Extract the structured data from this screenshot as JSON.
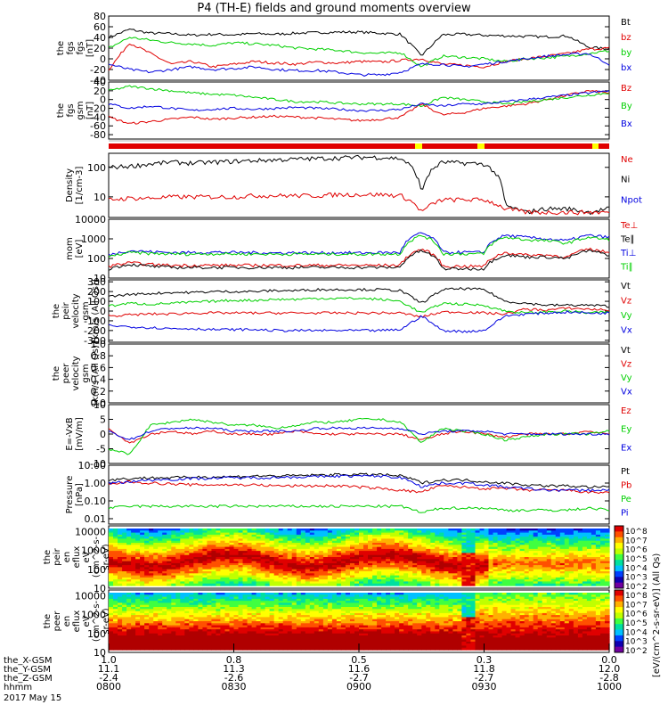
{
  "title": "P4 (TH-E) fields and ground moments overview",
  "date_label": "2017 May 15",
  "colors": {
    "black": "#000000",
    "red": "#e00000",
    "green": "#00d000",
    "blue": "#0000e0"
  },
  "chart_data": [
    {
      "type": "line",
      "ylabel": [
        "the",
        "fgs",
        "fgs",
        "[nT]"
      ],
      "ticks": [
        "80",
        "60",
        "40",
        "20",
        "0",
        "-20",
        "-40"
      ],
      "ylim": [
        -40,
        80
      ],
      "legend": [
        "Bt",
        "bz",
        "by",
        "bx"
      ],
      "series": [
        {
          "name": "Bt",
          "color": "black",
          "values": [
            40,
            55,
            48,
            47,
            44,
            46,
            45,
            47,
            46,
            48,
            49,
            50,
            50,
            48,
            46,
            6,
            45,
            46,
            44,
            43,
            42,
            41,
            43,
            22,
            18
          ]
        },
        {
          "name": "bz",
          "color": "red",
          "values": [
            -20,
            30,
            10,
            -10,
            -5,
            -15,
            -10,
            -5,
            -8,
            -10,
            -6,
            -8,
            -5,
            -6,
            -3,
            0,
            -10,
            -12,
            -15,
            -5,
            0,
            5,
            10,
            18,
            20
          ]
        },
        {
          "name": "by",
          "color": "green",
          "values": [
            20,
            40,
            35,
            30,
            28,
            25,
            30,
            28,
            25,
            20,
            18,
            16,
            12,
            10,
            12,
            -15,
            5,
            3,
            0,
            -5,
            0,
            2,
            5,
            10,
            15
          ]
        },
        {
          "name": "bx",
          "color": "blue",
          "values": [
            -10,
            -20,
            -25,
            -20,
            -15,
            -20,
            -18,
            -15,
            -20,
            -22,
            -22,
            -25,
            -30,
            -30,
            -25,
            -10,
            -10,
            -15,
            -10,
            -5,
            0,
            5,
            8,
            10,
            -10
          ]
        }
      ]
    },
    {
      "type": "line",
      "ylabel": [
        "the",
        "fgs",
        "gsm",
        "[nT]"
      ],
      "ticks": [
        "40",
        "20",
        "0",
        "-20",
        "-40",
        "-60",
        "-80"
      ],
      "ylim": [
        -90,
        40
      ],
      "legend": [
        "Bz",
        "By",
        "Bx"
      ],
      "series": [
        {
          "name": "Bz",
          "color": "red",
          "values": [
            -40,
            -55,
            -50,
            -45,
            -40,
            -45,
            -42,
            -40,
            -38,
            -40,
            -42,
            -45,
            -48,
            -45,
            -40,
            -10,
            -35,
            -30,
            -20,
            -15,
            -10,
            0,
            10,
            20,
            15
          ]
        },
        {
          "name": "By",
          "color": "green",
          "values": [
            20,
            30,
            25,
            20,
            15,
            12,
            10,
            5,
            0,
            -5,
            -5,
            -8,
            -10,
            -10,
            -10,
            -15,
            5,
            0,
            -5,
            -10,
            -5,
            0,
            5,
            10,
            15
          ]
        },
        {
          "name": "Bx",
          "color": "blue",
          "values": [
            -10,
            -20,
            -15,
            -20,
            -25,
            -22,
            -20,
            -22,
            -20,
            -18,
            -20,
            -22,
            -25,
            -25,
            -22,
            -10,
            -15,
            -10,
            -10,
            -5,
            0,
            5,
            10,
            15,
            20
          ]
        }
      ]
    },
    {
      "type": "line",
      "ylabel": [
        "Density",
        "[1/cm-3]"
      ],
      "ticks": [
        "100",
        "10"
      ],
      "ylim": [
        2,
        300
      ],
      "scale": "log",
      "legend": [
        "Ne",
        "Ni",
        "Npot"
      ],
      "series": [
        {
          "name": "Ni",
          "color": "black",
          "values": [
            100,
            110,
            130,
            150,
            140,
            150,
            160,
            170,
            180,
            190,
            200,
            210,
            220,
            220,
            200,
            10,
            150,
            140,
            130,
            5,
            3,
            4,
            4,
            3,
            4
          ]
        },
        {
          "name": "Ne",
          "color": "red",
          "values": [
            8,
            9,
            9,
            10,
            10,
            10,
            10,
            11,
            11,
            11,
            11,
            12,
            12,
            12,
            11,
            3,
            8,
            8,
            8,
            4,
            3,
            3,
            3,
            3,
            3
          ]
        }
      ]
    },
    {
      "type": "line",
      "ylabel": [
        "mom",
        "[eV]"
      ],
      "ticks": [
        "10000",
        "1000",
        "100",
        "10"
      ],
      "ylim": [
        10,
        10000
      ],
      "scale": "log",
      "legend": [
        "Te⊥",
        "Te∥",
        "Ti⊥",
        "Ti∥"
      ],
      "series": [
        {
          "name": "Ti⊥",
          "color": "blue",
          "values": [
            150,
            250,
            220,
            200,
            200,
            210,
            200,
            200,
            190,
            200,
            190,
            200,
            190,
            200,
            200,
            2000,
            200,
            210,
            200,
            1500,
            1200,
            1000,
            800,
            1500,
            1200
          ]
        },
        {
          "name": "Ti∥",
          "color": "green",
          "values": [
            120,
            200,
            180,
            170,
            170,
            175,
            170,
            170,
            165,
            170,
            165,
            170,
            165,
            170,
            170,
            1500,
            170,
            175,
            170,
            1200,
            900,
            800,
            600,
            1200,
            900
          ]
        },
        {
          "name": "Te⊥",
          "color": "red",
          "values": [
            40,
            60,
            50,
            45,
            45,
            45,
            45,
            45,
            45,
            45,
            45,
            45,
            45,
            45,
            45,
            300,
            40,
            40,
            40,
            200,
            150,
            150,
            120,
            300,
            200
          ]
        },
        {
          "name": "Te∥",
          "color": "black",
          "values": [
            30,
            50,
            40,
            35,
            35,
            35,
            35,
            35,
            35,
            35,
            35,
            35,
            35,
            35,
            35,
            250,
            30,
            30,
            30,
            150,
            120,
            120,
            100,
            250,
            150
          ]
        }
      ]
    },
    {
      "type": "line",
      "ylabel": [
        "the",
        "peir",
        "velocity",
        "gsm",
        "[km/s (All Qs)]"
      ],
      "ticks": [
        "300",
        "200",
        "100",
        "0",
        "-100",
        "-200",
        "-300"
      ],
      "ylim": [
        -320,
        320
      ],
      "legend": [
        "Vt",
        "Vz",
        "Vy",
        "Vx"
      ],
      "series": [
        {
          "name": "Vt",
          "color": "black",
          "values": [
            150,
            170,
            180,
            190,
            190,
            200,
            200,
            200,
            210,
            210,
            220,
            220,
            220,
            220,
            210,
            80,
            220,
            230,
            220,
            100,
            80,
            60,
            60,
            60,
            50
          ]
        },
        {
          "name": "Vz",
          "color": "red",
          "values": [
            -50,
            -40,
            -30,
            -30,
            -20,
            -20,
            -20,
            -20,
            -20,
            -20,
            -20,
            -20,
            -20,
            -20,
            -20,
            -60,
            -10,
            -10,
            -20,
            -30,
            20,
            10,
            30,
            20,
            10
          ]
        },
        {
          "name": "Vy",
          "color": "green",
          "values": [
            50,
            80,
            70,
            80,
            90,
            100,
            110,
            110,
            120,
            120,
            130,
            130,
            130,
            120,
            100,
            -20,
            80,
            70,
            60,
            0,
            -20,
            -10,
            0,
            -20,
            -10
          ]
        },
        {
          "name": "Vx",
          "color": "blue",
          "values": [
            -150,
            -160,
            -170,
            -180,
            -180,
            -190,
            -190,
            -190,
            -200,
            -200,
            -200,
            -200,
            -200,
            -200,
            -190,
            -50,
            -200,
            -210,
            -200,
            -50,
            -30,
            -20,
            -10,
            -20,
            -20
          ]
        }
      ]
    },
    {
      "type": "line",
      "ylabel": [
        "the",
        "peer",
        "velocity",
        "gsm",
        "[km/s (All Qs)]"
      ],
      "ticks": [
        "1.0",
        "0.8",
        "0.6",
        "0.4",
        "0.2",
        "0.0"
      ],
      "ylim": [
        0,
        1
      ],
      "legend": [
        "Vt",
        "Vz",
        "Vy",
        "Vx"
      ],
      "series": []
    },
    {
      "type": "line",
      "ylabel": [
        "E=-VxB",
        "[mV/m]"
      ],
      "ticks": [
        "10",
        "5",
        "0",
        "-5",
        "-10"
      ],
      "ylim": [
        -10,
        10
      ],
      "legend": [
        "Ez",
        "Ey",
        "Ex"
      ],
      "series": [
        {
          "name": "Ez",
          "color": "red",
          "values": [
            2,
            -3,
            0,
            1,
            0,
            1,
            0,
            0,
            0,
            1,
            0,
            0,
            0,
            0,
            0,
            -2,
            0,
            1,
            0,
            -1,
            0,
            0,
            0,
            1,
            0
          ]
        },
        {
          "name": "Ey",
          "color": "green",
          "values": [
            -5,
            -7,
            3,
            4,
            5,
            4,
            3,
            3,
            2,
            3,
            4,
            4,
            5,
            5,
            4,
            -3,
            2,
            1,
            0,
            -2,
            -1,
            0,
            0,
            0,
            1
          ]
        },
        {
          "name": "Ex",
          "color": "blue",
          "values": [
            1,
            -2,
            1,
            2,
            2,
            2,
            1,
            1,
            1,
            1,
            2,
            2,
            2,
            2,
            2,
            0,
            1,
            1,
            1,
            0,
            0,
            0,
            0,
            0,
            0
          ]
        }
      ]
    },
    {
      "type": "line",
      "ylabel": [
        "Pressure",
        "[nPa]"
      ],
      "ticks": [
        "10.00",
        "1.00",
        "0.10",
        "0.01"
      ],
      "ylim": [
        0.005,
        10
      ],
      "scale": "log",
      "legend": [
        "Pt",
        "Pb",
        "Pe",
        "Pi"
      ],
      "series": [
        {
          "name": "Pt",
          "color": "black",
          "values": [
            1.5,
            1.8,
            2,
            2,
            2.2,
            2.2,
            2.3,
            2.5,
            2.5,
            2.6,
            2.8,
            3,
            3,
            3,
            2.5,
            1,
            1.5,
            1.5,
            1.2,
            1,
            0.8,
            0.7,
            0.7,
            0.6,
            0.6
          ]
        },
        {
          "name": "Pb",
          "color": "red",
          "values": [
            0.8,
            1.2,
            1,
            0.9,
            0.8,
            0.8,
            0.8,
            0.8,
            0.7,
            0.7,
            0.7,
            0.7,
            0.6,
            0.5,
            0.4,
            0.3,
            0.7,
            0.6,
            0.5,
            0.5,
            0.4,
            0.4,
            0.4,
            0.3,
            0.3
          ]
        },
        {
          "name": "Pe",
          "color": "green",
          "values": [
            0.04,
            0.05,
            0.05,
            0.05,
            0.05,
            0.05,
            0.05,
            0.05,
            0.05,
            0.05,
            0.05,
            0.05,
            0.05,
            0.05,
            0.05,
            0.02,
            0.04,
            0.04,
            0.04,
            0.03,
            0.03,
            0.03,
            0.03,
            0.04,
            0.03
          ]
        },
        {
          "name": "Pi",
          "color": "blue",
          "values": [
            1,
            1.2,
            1.5,
            1.6,
            1.8,
            1.9,
            2,
            2,
            2.1,
            2.2,
            2.3,
            2.5,
            2.5,
            2.5,
            2,
            0.6,
            1,
            1,
            0.8,
            0.6,
            0.5,
            0.4,
            0.4,
            0.4,
            0.4
          ]
        }
      ]
    },
    {
      "type": "heatmap",
      "ylabel": [
        "the",
        "peir",
        "en",
        "eflux",
        "eV",
        "(cm^2-s-",
        "sr-eV)"
      ],
      "ticks": [
        "10000",
        "1000",
        "100",
        "10"
      ],
      "ylim": [
        10,
        20000
      ],
      "scale": "log",
      "colorbar_ticks": [
        "10^8",
        "10^7",
        "10^6",
        "10^5",
        "10^4",
        "10^3",
        "10^2"
      ]
    },
    {
      "type": "heatmap",
      "ylabel": [
        "the",
        "peer",
        "en",
        "eflux",
        "eV",
        "(cm^2-s-",
        "sr-eV)"
      ],
      "ticks": [
        "10000",
        "1000",
        "100",
        "10"
      ],
      "ylim": [
        10,
        20000
      ],
      "scale": "log",
      "colorbar_ticks": [
        "10^8",
        "10^7",
        "10^6",
        "10^5",
        "10^4",
        "10^3",
        "10^2"
      ]
    }
  ],
  "colorbar_label": "[eV/(cm^2-s-sr-eV)] (All Qs)",
  "x_axis": {
    "row_labels": [
      "the_X-GSM",
      "the_Y-GSM",
      "the_Z-GSM",
      "hhmm"
    ],
    "columns": [
      [
        "1.0",
        "11.1",
        "-2.4",
        "0800"
      ],
      [
        "0.8",
        "11.3",
        "-2.6",
        "0830"
      ],
      [
        "0.5",
        "11.6",
        "-2.7",
        "0900"
      ],
      [
        "0.3",
        "11.8",
        "-2.7",
        "0930"
      ],
      [
        "0.0",
        "12.0",
        "-2.8",
        "1000"
      ]
    ]
  }
}
